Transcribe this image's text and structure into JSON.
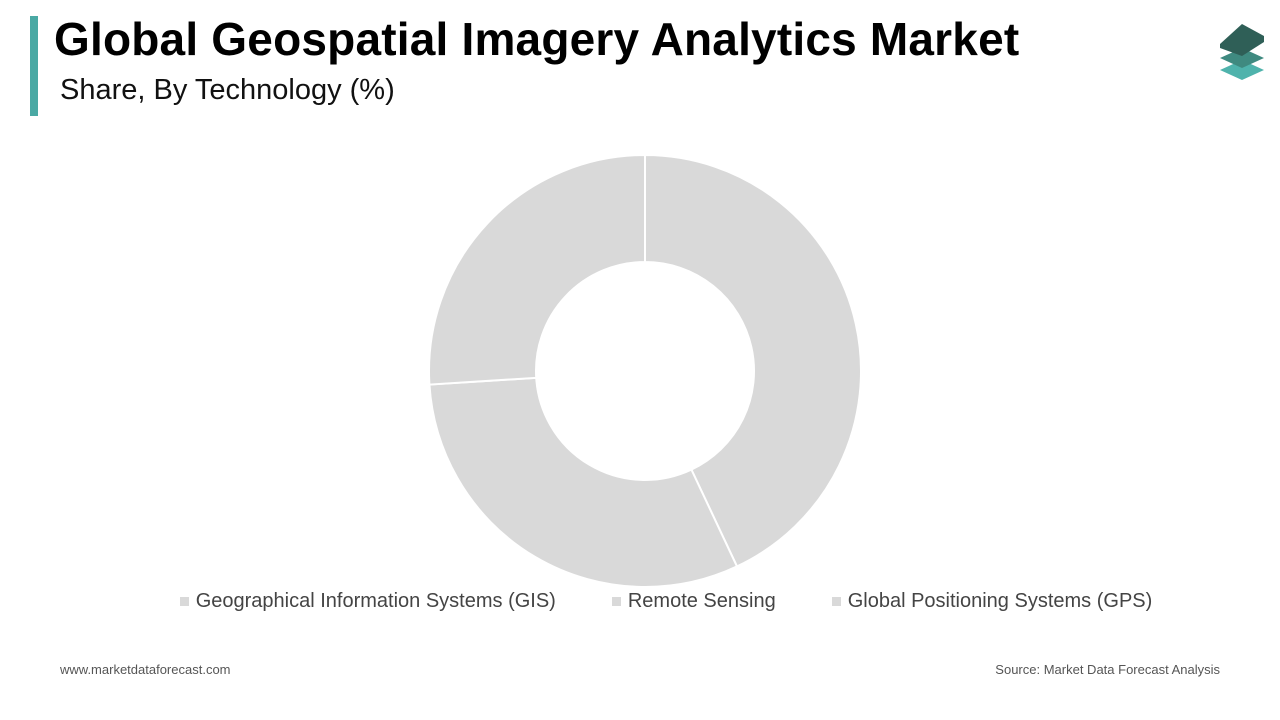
{
  "header": {
    "title": "Global Geospatial Imagery Analytics Market",
    "subtitle": "Share, By Technology (%)"
  },
  "colors": {
    "accent": "#4aa9a4",
    "slice": "#d9d9d9",
    "logo_dark": "#2f5f57",
    "logo_mid": "#3f8a80",
    "logo_light": "#4fb3ac"
  },
  "chart_data": {
    "type": "pie",
    "variant": "donut",
    "categories": [
      "Geographical Information Systems (GIS)",
      "Remote Sensing",
      "Global Positioning Systems (GPS)"
    ],
    "values": [
      43,
      31,
      26
    ],
    "unit": "%",
    "legend_position": "bottom"
  },
  "footer": {
    "website": "www.marketdataforecast.com",
    "source": "Source: Market Data Forecast Analysis"
  },
  "logo_icon": "layers-icon"
}
